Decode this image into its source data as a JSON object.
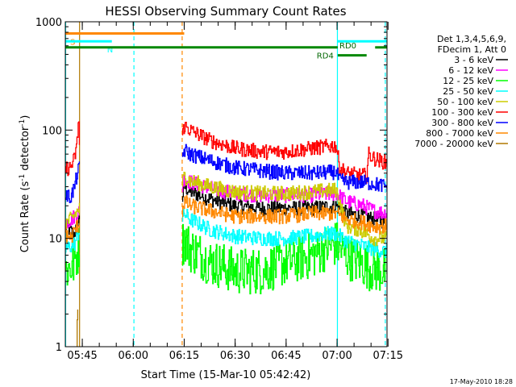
{
  "chart_data": {
    "type": "line",
    "title": "HESSI Observing Summary Count Rates",
    "xlabel": "Start Time (15-Mar-10 05:42:42)",
    "ylabel_main": "Count Rate (s",
    "ylabel_sup1": "-1",
    "ylabel_mid": " detector",
    "ylabel_sup2": "-1",
    "ylabel_end": ")",
    "yscale": "log",
    "ylim": [
      1,
      1000
    ],
    "xlim_min": [
      -2.7,
      92
    ],
    "x_ticks": [
      {
        "label": "05:45",
        "t": 2.3
      },
      {
        "label": "06:00",
        "t": 17.3
      },
      {
        "label": "06:15",
        "t": 32.3
      },
      {
        "label": "06:30",
        "t": 47.3
      },
      {
        "label": "06:45",
        "t": 62.3
      },
      {
        "label": "07:00",
        "t": 77.3
      },
      {
        "label": "07:15",
        "t": 92.3
      }
    ],
    "y_ticks": [
      {
        "label": "1",
        "v": 1
      },
      {
        "label": "10",
        "v": 10
      },
      {
        "label": "100",
        "v": 100
      },
      {
        "label": "1000",
        "v": 1000
      }
    ],
    "legend": {
      "header": [
        "Det 1,3,4,5,6,9,",
        "FDecim 1, Att 0"
      ],
      "placement": "right"
    },
    "series": [
      {
        "name": "3 - 6 keV",
        "color": "#000000",
        "gaps": [
          [
            1.5,
            31.5
          ]
        ],
        "pts": [
          [
            -2.7,
            13
          ],
          [
            -1.5,
            12
          ],
          [
            -0.2,
            11
          ],
          [
            0.8,
            13
          ],
          [
            1.5,
            16
          ],
          [
            31.5,
            22
          ],
          [
            32.3,
            30
          ],
          [
            34,
            27
          ],
          [
            40,
            23
          ],
          [
            47,
            20
          ],
          [
            55,
            19
          ],
          [
            62,
            19
          ],
          [
            70,
            19
          ],
          [
            77,
            20
          ],
          [
            80,
            17
          ],
          [
            85,
            16
          ],
          [
            88,
            15
          ],
          [
            92,
            14
          ]
        ]
      },
      {
        "name": "6 - 12 keV",
        "color": "#ff00ff",
        "gaps": [
          [
            1.5,
            31.5
          ]
        ],
        "pts": [
          [
            -2.7,
            14
          ],
          [
            -1,
            15
          ],
          [
            1.5,
            18
          ],
          [
            31.5,
            28
          ],
          [
            32.3,
            36
          ],
          [
            34,
            33
          ],
          [
            40,
            29
          ],
          [
            47,
            26
          ],
          [
            55,
            25
          ],
          [
            62,
            25
          ],
          [
            70,
            25
          ],
          [
            77,
            26
          ],
          [
            80,
            22
          ],
          [
            85,
            20
          ],
          [
            88,
            18
          ],
          [
            92,
            17
          ]
        ]
      },
      {
        "name": "12 - 25 keV",
        "color": "#00ff00",
        "gaps": [
          [
            1.5,
            31.5
          ]
        ],
        "pts": [
          [
            -2.7,
            5
          ],
          [
            -1,
            5.5
          ],
          [
            0,
            6
          ],
          [
            1.5,
            9
          ],
          [
            31.5,
            8.5
          ],
          [
            32.3,
            10
          ],
          [
            34,
            8
          ],
          [
            37,
            7
          ],
          [
            40,
            6
          ],
          [
            44,
            5.5
          ],
          [
            47,
            5
          ],
          [
            55,
            5
          ],
          [
            62,
            6
          ],
          [
            70,
            7
          ],
          [
            73,
            8
          ],
          [
            77,
            9
          ],
          [
            80,
            7
          ],
          [
            84,
            6
          ],
          [
            88,
            5.2
          ],
          [
            92,
            5
          ]
        ]
      },
      {
        "name": "25 - 50 keV",
        "color": "#00ffff",
        "gaps": [
          [
            1.5,
            31.5
          ]
        ],
        "pts": [
          [
            -2.7,
            8
          ],
          [
            -1,
            8.5
          ],
          [
            0,
            9
          ],
          [
            1.5,
            12
          ],
          [
            31.5,
            14
          ],
          [
            32.3,
            17
          ],
          [
            34,
            15
          ],
          [
            40,
            12
          ],
          [
            47,
            10.5
          ],
          [
            55,
            10
          ],
          [
            62,
            10
          ],
          [
            70,
            10.5
          ],
          [
            74,
            11
          ],
          [
            77,
            11
          ],
          [
            80,
            9.5
          ],
          [
            85,
            8.5
          ],
          [
            88,
            8
          ],
          [
            92,
            7.5
          ]
        ]
      },
      {
        "name": "50 - 100 keV",
        "color": "#cccc00",
        "gaps": [
          [
            1.5,
            31.5
          ]
        ],
        "pts": [
          [
            -2.7,
            14
          ],
          [
            -1,
            15
          ],
          [
            1.5,
            19
          ],
          [
            31.5,
            30
          ],
          [
            32.3,
            38
          ],
          [
            34,
            34
          ],
          [
            40,
            30
          ],
          [
            47,
            27
          ],
          [
            55,
            26
          ],
          [
            62,
            26
          ],
          [
            70,
            27
          ],
          [
            77,
            28
          ],
          [
            80,
            13
          ],
          [
            84,
            12
          ],
          [
            88,
            10
          ],
          [
            92,
            10
          ]
        ]
      },
      {
        "name": "100 - 300 keV",
        "color": "#ff0000",
        "gaps": [
          [
            1.5,
            31.5
          ]
        ],
        "pts": [
          [
            -2.7,
            44
          ],
          [
            -1.2,
            45
          ],
          [
            0,
            55
          ],
          [
            0.8,
            80
          ],
          [
            1.2,
            140
          ],
          [
            1.5,
            60
          ],
          [
            31.5,
            85
          ],
          [
            32.3,
            110
          ],
          [
            34,
            100
          ],
          [
            40,
            80
          ],
          [
            47,
            68
          ],
          [
            55,
            63
          ],
          [
            62,
            63
          ],
          [
            70,
            68
          ],
          [
            77,
            72
          ],
          [
            78,
            45
          ],
          [
            80,
            40
          ],
          [
            84,
            38
          ],
          [
            86,
            38
          ],
          [
            86.5,
            60
          ],
          [
            88,
            55
          ],
          [
            90,
            52
          ],
          [
            92,
            50
          ]
        ]
      },
      {
        "name": "300 - 800 keV",
        "color": "#0000ff",
        "gaps": [
          [
            1.5,
            31.5
          ]
        ],
        "pts": [
          [
            -2.7,
            25
          ],
          [
            -1.2,
            24
          ],
          [
            0,
            30
          ],
          [
            0.8,
            40
          ],
          [
            1.5,
            45
          ],
          [
            31.5,
            55
          ],
          [
            32.3,
            65
          ],
          [
            34,
            60
          ],
          [
            40,
            52
          ],
          [
            47,
            45
          ],
          [
            55,
            42
          ],
          [
            62,
            40
          ],
          [
            70,
            40
          ],
          [
            77,
            41
          ],
          [
            78,
            34
          ],
          [
            80,
            33
          ],
          [
            85,
            33
          ],
          [
            88,
            32
          ],
          [
            92,
            30
          ]
        ]
      },
      {
        "name": "800 - 7000 keV",
        "color": "#ff8800",
        "gaps": [
          [
            1.5,
            31.5
          ]
        ],
        "pts": [
          [
            -2.7,
            11
          ],
          [
            -1,
            10
          ],
          [
            0,
            12
          ],
          [
            1.5,
            14
          ],
          [
            31.5,
            17
          ],
          [
            32.3,
            22
          ],
          [
            34,
            20
          ],
          [
            40,
            18
          ],
          [
            47,
            16
          ],
          [
            55,
            16
          ],
          [
            62,
            16
          ],
          [
            70,
            17
          ],
          [
            77,
            17
          ],
          [
            80,
            15
          ],
          [
            85,
            14
          ],
          [
            88,
            13
          ],
          [
            92,
            13
          ]
        ]
      },
      {
        "name": "7000 - 20000 keV",
        "color": "#b07800",
        "gaps": [],
        "pts": [
          [
            0.6,
            1
          ],
          [
            0.9,
            2.6
          ],
          [
            1.1,
            1.5
          ]
        ]
      }
    ],
    "attenuator_bars": [
      {
        "label": "S",
        "color": "#ff8800",
        "t0": -2.7,
        "t1": 32.3,
        "level": 780
      },
      {
        "label": "N",
        "color": "#00ffff",
        "t0": -2.7,
        "t1": 11.0,
        "level": 660
      },
      {
        "label": "",
        "color": "#00ffff",
        "t0": 77.5,
        "t1": 92.0,
        "level": 660
      },
      {
        "label": "",
        "color": "#008800",
        "t0": -2.7,
        "t1": 77.5,
        "level": 580
      },
      {
        "label": "",
        "color": "#008800",
        "t0": 77.5,
        "t1": 86.0,
        "level": 490
      },
      {
        "label": "",
        "color": "#008800",
        "t0": 88.5,
        "t1": 92.0,
        "level": 580
      }
    ],
    "bar_labels": [
      {
        "text": "RD0",
        "t": 80.5,
        "level": 610
      },
      {
        "text": "RD4",
        "t": 73.8,
        "level": 490
      }
    ],
    "vlines": [
      {
        "t": -2.6,
        "color": "#00ffff",
        "dash": false
      },
      {
        "t": 1.5,
        "color": "#b07800",
        "dash": false
      },
      {
        "t": 17.5,
        "color": "#00ffff",
        "dash": true
      },
      {
        "t": 31.7,
        "color": "#ff8800",
        "dash": true
      },
      {
        "t": 77.4,
        "color": "#00ffff",
        "dash": false
      },
      {
        "t": 91.5,
        "color": "#00ffff",
        "dash": true
      }
    ],
    "footer_date": "17-May-2010 18:28"
  }
}
